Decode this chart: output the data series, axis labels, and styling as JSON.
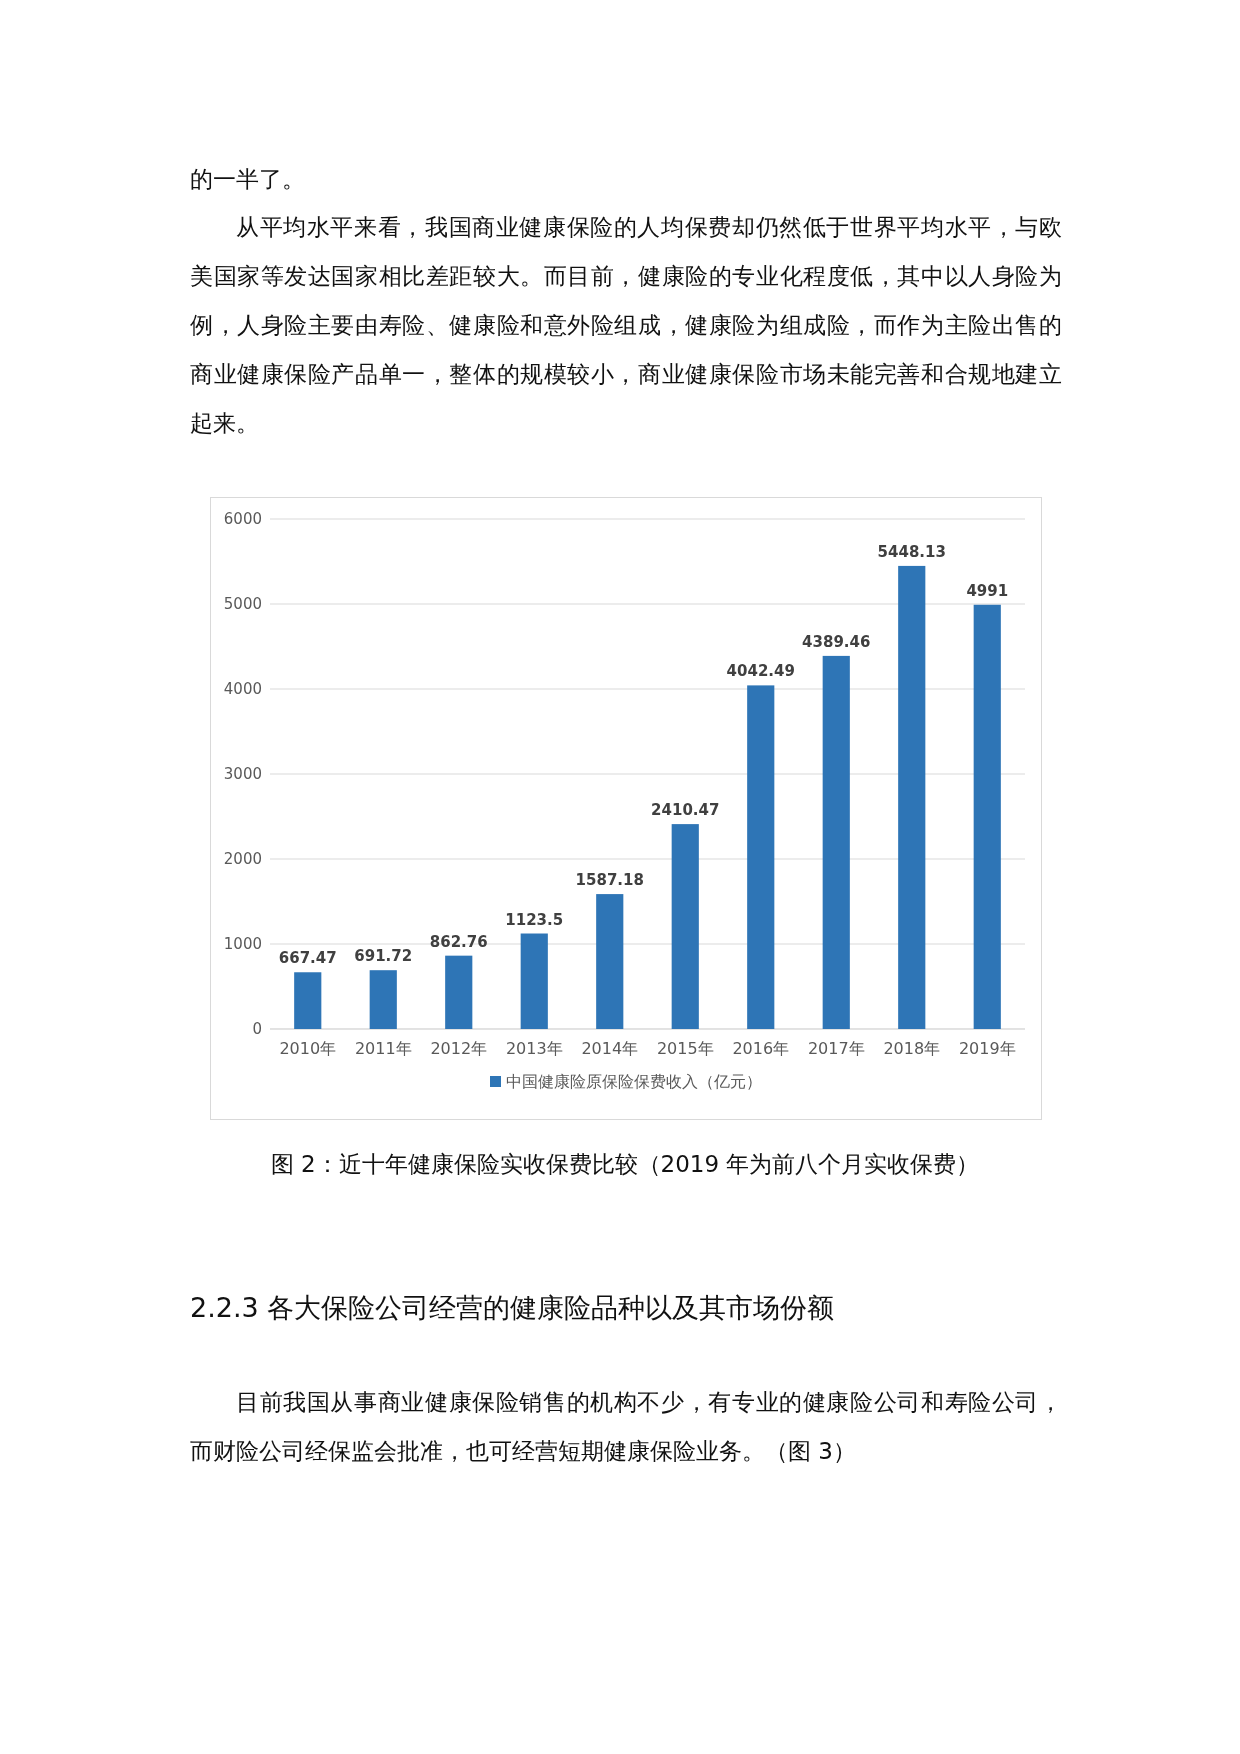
{
  "chart_data": {
    "type": "bar",
    "categories": [
      "2010年",
      "2011年",
      "2012年",
      "2013年",
      "2014年",
      "2015年",
      "2016年",
      "2017年",
      "2018年",
      "2019年"
    ],
    "series": [
      {
        "name": "中国健康险原保险保费收入（亿元）",
        "color": "#2e75b6",
        "values": [
          667.47,
          691.72,
          862.76,
          1123.5,
          1587.18,
          2410.47,
          4042.49,
          4389.46,
          5448.13,
          4991
        ]
      }
    ],
    "ylim": [
      0,
      6000
    ],
    "yticks": [
      0,
      1000,
      2000,
      3000,
      4000,
      5000,
      6000
    ],
    "grid": "y",
    "data_labels": true,
    "legend": "bottom",
    "annotations": [
      "的一半了。",
      "从平均水平来看，我国商业健康保险的人均保费却仍然低于世界平均水平，与欧美国家等发达国家相比差距较大。而目前，健康险的专业化程度低，其中以人身险为例，人身险主要由寿险、健康险和意外险组成，健康险为组成险，而作为主险出售的商业健康保险产品单一，整体的规模较小，商业健康保险市场未能完善和合规地建立起来。",
      "图 2：近十年健康保险实收保费比较（2019 年为前八个月实收保费）",
      "2.2.3 各大保险公司经营的健康险品种以及其市场份额",
      "目前我国从事商业健康保险销售的机构不少，有专业的健康险公司和寿险公司，而财险公司经保监会批准，也可经营短期健康保险业务。（图 3）"
    ]
  }
}
